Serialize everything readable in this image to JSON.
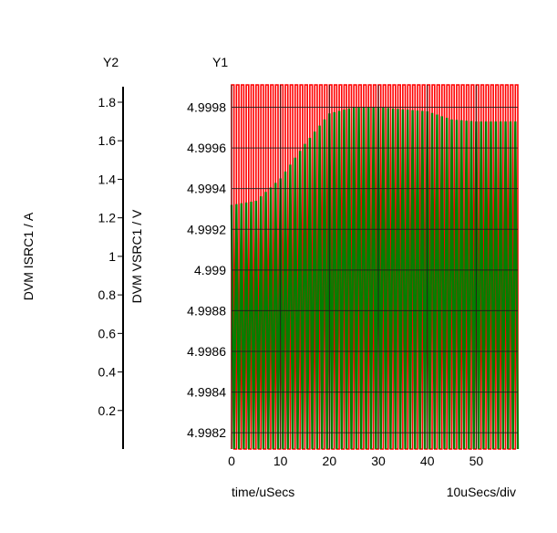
{
  "chart_data": {
    "type": "line",
    "title": "",
    "xlabel": "time/uSecs",
    "x_scale_note": "10uSecs/div",
    "xlim": [
      0,
      58.5
    ],
    "x_ticks": [
      0,
      10,
      20,
      30,
      40,
      50
    ],
    "axes": {
      "y1": {
        "name": "Y1",
        "label": "DVM VSRC1 / V",
        "ylim": [
          4.99812,
          4.99991
        ],
        "ticks": [
          4.9982,
          4.9984,
          4.9986,
          4.9988,
          4.999,
          4.9992,
          4.9994,
          4.9996,
          4.9998
        ],
        "tick_labels": [
          "4.9982",
          "4.9984",
          "4.9986",
          "4.9988",
          "4.999",
          "4.9992",
          "4.9994",
          "4.9996",
          "4.9998"
        ]
      },
      "y2": {
        "name": "Y2",
        "label": "DVM ISRC1 / A",
        "ylim": [
          0,
          1.89
        ],
        "ticks": [
          0.2,
          0.4,
          0.6,
          0.8,
          1,
          1.2,
          1.4,
          1.6,
          1.8
        ],
        "tick_labels": [
          "0.2",
          "0.4",
          "0.6",
          "0.8",
          "1",
          "1.2",
          "1.4",
          "1.6",
          "1.8"
        ]
      }
    },
    "grid": true,
    "series": [
      {
        "axis": "y2",
        "color": "#ff0000",
        "kind": "square-wave",
        "period_us": 1.0,
        "low": 0.0,
        "high": 1.89
      },
      {
        "axis": "y1",
        "color": "#008000",
        "kind": "ripple",
        "period_us": 1.0,
        "envelope_x": [
          0,
          5,
          10,
          15,
          20,
          25,
          30,
          35,
          40,
          45,
          50,
          55,
          58.5
        ],
        "envelope_high": [
          4.99932,
          4.99934,
          4.99945,
          4.99962,
          4.99977,
          4.9998,
          4.9998,
          4.99979,
          4.99978,
          4.99974,
          4.99973,
          4.99973,
          4.99973
        ],
        "envelope_low": [
          4.99812,
          4.99812,
          4.99812,
          4.99812,
          4.99812,
          4.99812,
          4.99812,
          4.99812,
          4.99812,
          4.99812,
          4.99812,
          4.99812,
          4.99812
        ]
      }
    ]
  }
}
